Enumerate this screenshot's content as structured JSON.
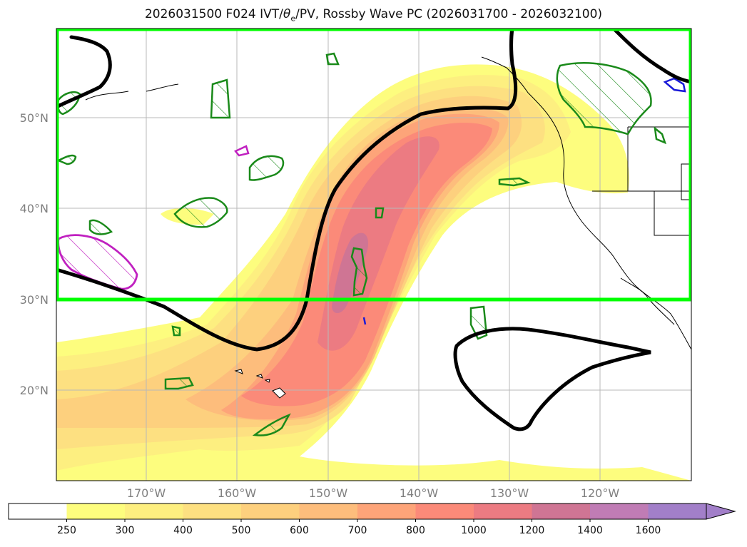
{
  "title": {
    "prefix": "2026031500 F024 IVT/",
    "theta": "θ",
    "sub": "e",
    "suffix": "/PV, Rossby Wave PC (2026031700 - 2026032100)"
  },
  "map": {
    "projection": "Mercator",
    "lon_range": [
      "180°",
      "110°W"
    ],
    "lat_range": [
      "10°N",
      "60°N"
    ],
    "lat_labels": [
      "50°N",
      "40°N",
      "30°N",
      "20°N"
    ],
    "lon_labels": [
      "170°W",
      "160°W",
      "150°W",
      "140°W",
      "130°W",
      "120°W"
    ],
    "highlight_box": {
      "color": "#00ff00",
      "lat_min": "30°N",
      "lat_max": "60°N"
    },
    "contours": {
      "black": "Rossby wave PC contour",
      "green": "PV / theta-e contours (hatched)",
      "magenta": "hatched contour",
      "blue": "small contour"
    }
  },
  "colorbar": {
    "ticks": [
      "250",
      "300",
      "400",
      "500",
      "600",
      "700",
      "800",
      "1000",
      "1200",
      "1400",
      "1600"
    ],
    "colors": [
      "#ffffff",
      "#fdfd7e",
      "#fdef80",
      "#fde081",
      "#fdd07e",
      "#fdbd7c",
      "#fda479",
      "#fb8a79",
      "#ec7b82",
      "#cf7594",
      "#c07cb5",
      "#a27fc9"
    ],
    "extend": "max"
  }
}
